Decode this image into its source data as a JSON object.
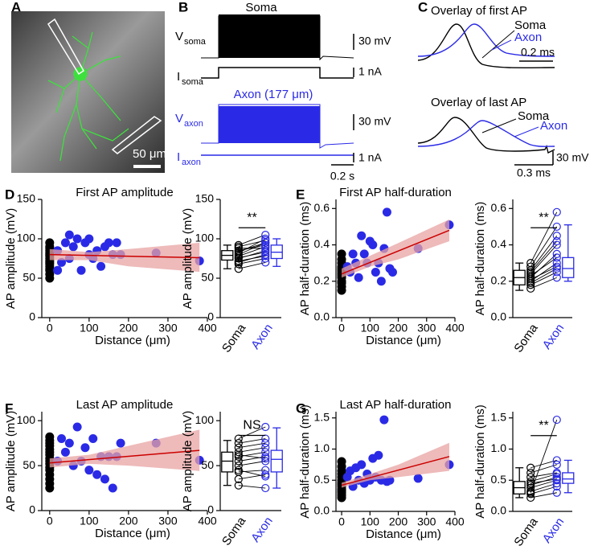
{
  "panel_labels": [
    "A",
    "B",
    "C",
    "D",
    "E",
    "F",
    "G"
  ],
  "image_a": {
    "scale_label": "50 μm"
  },
  "traces_b": {
    "soma_title": "Soma",
    "v_soma": {
      "text": "V",
      "sub": "soma"
    },
    "i_soma": {
      "text": "I",
      "sub": "soma"
    },
    "axon_title": "Axon (177 μm)",
    "v_axon": {
      "text": "V",
      "sub": "axon"
    },
    "i_axon": {
      "text": "I",
      "sub": "axon"
    },
    "scale_v1": "30 mV",
    "scale_i1": "1 nA",
    "scale_v2": "30 mV",
    "scale_i2": "1 nA",
    "scale_t": "0.2 s"
  },
  "traces_c": {
    "title_first": "Overlay of first AP",
    "soma_first": "Soma",
    "axon_first": "Axon",
    "scale_t_first": "0.2 ms",
    "title_last": "Overlay of last AP",
    "soma_last": "Soma",
    "axon_last": "Axon",
    "scale_v_last": "30 mV",
    "scale_t_last": "0.3 ms"
  },
  "chart_data": [
    {
      "type": "scatter",
      "title": "First AP amplitude",
      "xlabel": "Distance (μm)",
      "ylabel": "AP amplitude (mV)",
      "xlim": [
        -20,
        400
      ],
      "ylim": [
        0,
        150
      ],
      "xticks": [
        0,
        100,
        200,
        300,
        400
      ],
      "yticks": [
        0,
        50,
        100,
        150
      ],
      "series": [
        {
          "color": "#000000",
          "x": [
            0,
            0,
            0,
            0,
            0,
            0,
            0,
            0,
            0,
            0,
            0,
            0,
            0,
            0,
            0,
            0
          ],
          "y": [
            50,
            55,
            60,
            65,
            70,
            75,
            78,
            80,
            82,
            85,
            88,
            90,
            95,
            72,
            68,
            62
          ]
        },
        {
          "color": "#2a2ae6",
          "x": [
            20,
            30,
            40,
            50,
            60,
            70,
            80,
            90,
            100,
            110,
            120,
            130,
            140,
            150,
            160,
            170,
            180,
            270,
            380,
            20,
            50,
            100
          ],
          "y": [
            85,
            70,
            95,
            105,
            90,
            100,
            60,
            95,
            80,
            75,
            85,
            65,
            90,
            95,
            80,
            95,
            80,
            82,
            72,
            60,
            75,
            100
          ]
        }
      ],
      "fit": {
        "color": "#cc0000",
        "x": [
          0,
          380
        ],
        "y": [
          80,
          76
        ]
      },
      "band": {
        "color": "#e8a3a3",
        "x": [
          0,
          100,
          200,
          380
        ],
        "lower": [
          73,
          73,
          65,
          58
        ],
        "upper": [
          87,
          83,
          87,
          95
        ]
      }
    },
    {
      "type": "box",
      "ylabel": "AP amplitude (mV)",
      "ylim": [
        0,
        150
      ],
      "yticks": [
        0,
        50,
        100,
        150
      ],
      "categories": [
        "Soma",
        "Axon"
      ],
      "colors": [
        "#000000",
        "#2a2ae6"
      ],
      "significance": "**",
      "boxes": [
        {
          "min": 62,
          "q1": 73,
          "median": 79,
          "q3": 85,
          "max": 92
        },
        {
          "min": 65,
          "q1": 75,
          "median": 83,
          "q3": 92,
          "max": 100
        }
      ],
      "pairs": [
        [
          62,
          70,
          75,
          78,
          80,
          82,
          85,
          88,
          90,
          92,
          72,
          68,
          76,
          84
        ],
        [
          70,
          80,
          85,
          90,
          95,
          100,
          92,
          88,
          98,
          105,
          78,
          75,
          83,
          95
        ]
      ]
    },
    {
      "type": "scatter",
      "title": "First AP half-duration",
      "xlabel": "Distance (μm)",
      "ylabel": "AP half-duration (ms)",
      "xlim": [
        -20,
        400
      ],
      "ylim": [
        0,
        0.65
      ],
      "xticks": [
        0,
        100,
        200,
        300,
        400
      ],
      "yticks": [
        {
          "value": 0,
          "label": "0.0"
        },
        0.2,
        0.4,
        0.6
      ],
      "series": [
        {
          "color": "#000000",
          "x": [
            0,
            0,
            0,
            0,
            0,
            0,
            0,
            0,
            0,
            0,
            0,
            0,
            0,
            0
          ],
          "y": [
            0.15,
            0.17,
            0.19,
            0.2,
            0.22,
            0.23,
            0.24,
            0.25,
            0.26,
            0.27,
            0.28,
            0.3,
            0.32,
            0.35
          ]
        },
        {
          "color": "#2a2ae6",
          "x": [
            20,
            30,
            40,
            50,
            60,
            70,
            80,
            90,
            100,
            110,
            120,
            130,
            140,
            150,
            160,
            170,
            180,
            270,
            380
          ],
          "y": [
            0.28,
            0.25,
            0.35,
            0.3,
            0.22,
            0.45,
            0.35,
            0.3,
            0.42,
            0.4,
            0.25,
            0.3,
            0.2,
            0.38,
            0.58,
            0.27,
            0.25,
            0.38,
            0.51
          ]
        }
      ],
      "fit": {
        "color": "#cc0000",
        "x": [
          0,
          380
        ],
        "y": [
          0.24,
          0.48
        ]
      },
      "band": {
        "color": "#e8a3a3",
        "x": [
          0,
          100,
          200,
          380
        ],
        "lower": [
          0.22,
          0.28,
          0.32,
          0.42
        ],
        "upper": [
          0.27,
          0.34,
          0.41,
          0.54
        ]
      }
    },
    {
      "type": "box",
      "ylabel": "AP half-duration (ms)",
      "ylim": [
        0,
        0.65
      ],
      "yticks": [
        {
          "value": 0,
          "label": "0.0"
        },
        0.2,
        0.4,
        0.6
      ],
      "categories": [
        "Soma",
        "Axon"
      ],
      "colors": [
        "#000000",
        "#2a2ae6"
      ],
      "significance": "**",
      "boxes": [
        {
          "min": 0.15,
          "q1": 0.18,
          "median": 0.22,
          "q3": 0.26,
          "max": 0.3
        },
        {
          "min": 0.2,
          "q1": 0.22,
          "median": 0.27,
          "q3": 0.33,
          "max": 0.51
        }
      ],
      "pairs": [
        [
          0.16,
          0.18,
          0.2,
          0.22,
          0.24,
          0.26,
          0.28,
          0.3,
          0.21,
          0.19,
          0.23,
          0.25
        ],
        [
          0.22,
          0.25,
          0.3,
          0.35,
          0.4,
          0.45,
          0.5,
          0.58,
          0.28,
          0.27,
          0.33,
          0.42
        ]
      ]
    },
    {
      "type": "scatter",
      "title": "Last AP amplitude",
      "xlabel": "Distance (μm)",
      "ylabel": "AP amplitude (mV)",
      "xlim": [
        -20,
        400
      ],
      "ylim": [
        0,
        110
      ],
      "xticks": [
        0,
        100,
        200,
        300,
        400
      ],
      "yticks": [
        0,
        50,
        100
      ],
      "series": [
        {
          "color": "#000000",
          "x": [
            0,
            0,
            0,
            0,
            0,
            0,
            0,
            0,
            0,
            0,
            0,
            0,
            0,
            0,
            0,
            0
          ],
          "y": [
            25,
            30,
            35,
            40,
            45,
            48,
            52,
            55,
            58,
            62,
            65,
            68,
            72,
            75,
            78,
            82
          ]
        },
        {
          "color": "#2a2ae6",
          "x": [
            20,
            30,
            40,
            50,
            60,
            70,
            80,
            90,
            100,
            110,
            120,
            130,
            140,
            150,
            160,
            170,
            180,
            270,
            380
          ],
          "y": [
            55,
            80,
            65,
            75,
            50,
            93,
            55,
            70,
            45,
            80,
            40,
            60,
            35,
            60,
            25,
            60,
            75,
            75,
            56
          ]
        }
      ],
      "fit": {
        "color": "#cc0000",
        "x": [
          0,
          380
        ],
        "y": [
          53,
          67
        ]
      },
      "band": {
        "color": "#e8a3a3",
        "x": [
          0,
          100,
          200,
          380
        ],
        "lower": [
          48,
          52,
          50,
          44
        ],
        "upper": [
          58,
          62,
          72,
          90
        ]
      }
    },
    {
      "type": "box",
      "ylabel": "AP amplitude (mV)",
      "ylim": [
        0,
        110
      ],
      "yticks": [
        0,
        50,
        100
      ],
      "categories": [
        "Soma",
        "Axon"
      ],
      "colors": [
        "#000000",
        "#2a2ae6"
      ],
      "significance": "NS",
      "boxes": [
        {
          "min": 28,
          "q1": 43,
          "median": 55,
          "q3": 65,
          "max": 78
        },
        {
          "min": 25,
          "q1": 43,
          "median": 57,
          "q3": 67,
          "max": 92
        }
      ],
      "pairs": [
        [
          28,
          35,
          43,
          50,
          55,
          60,
          65,
          70,
          75,
          80,
          45,
          62
        ],
        [
          25,
          40,
          45,
          55,
          60,
          65,
          70,
          75,
          80,
          93,
          38,
          58
        ]
      ]
    },
    {
      "type": "scatter",
      "title": "Last AP half-duration",
      "xlabel": "Distance (μm)",
      "ylabel": "AP half-duration (ms)",
      "xlim": [
        -20,
        400
      ],
      "ylim": [
        0,
        1.6
      ],
      "xticks": [
        0,
        100,
        200,
        300,
        400
      ],
      "yticks": [
        {
          "value": 0,
          "label": "0.0"
        },
        0.5,
        {
          "value": 1,
          "label": "1.0"
        },
        1.5
      ],
      "series": [
        {
          "color": "#000000",
          "x": [
            0,
            0,
            0,
            0,
            0,
            0,
            0,
            0,
            0,
            0,
            0,
            0,
            0,
            0
          ],
          "y": [
            0.22,
            0.26,
            0.3,
            0.33,
            0.36,
            0.4,
            0.43,
            0.46,
            0.5,
            0.55,
            0.6,
            0.65,
            0.72,
            0.8
          ]
        },
        {
          "color": "#2a2ae6",
          "x": [
            20,
            30,
            40,
            50,
            60,
            70,
            80,
            90,
            100,
            110,
            120,
            130,
            140,
            150,
            160,
            170,
            270,
            380
          ],
          "y": [
            0.55,
            0.65,
            0.4,
            0.7,
            0.5,
            0.75,
            0.45,
            0.6,
            0.5,
            0.85,
            0.55,
            0.9,
            0.5,
            1.47,
            0.48,
            0.5,
            0.53,
            0.75
          ]
        }
      ],
      "fit": {
        "color": "#cc0000",
        "x": [
          0,
          380
        ],
        "y": [
          0.42,
          0.88
        ]
      },
      "band": {
        "color": "#e8a3a3",
        "x": [
          0,
          100,
          200,
          380
        ],
        "lower": [
          0.38,
          0.5,
          0.55,
          0.65
        ],
        "upper": [
          0.46,
          0.6,
          0.75,
          1.1
        ]
      }
    },
    {
      "type": "box",
      "ylabel": "AP half-duration (ms)",
      "ylim": [
        0,
        1.6
      ],
      "yticks": [
        {
          "value": 0,
          "label": "0.0"
        },
        0.5,
        {
          "value": 1,
          "label": "1.0"
        },
        1.5
      ],
      "categories": [
        "Soma",
        "Axon"
      ],
      "colors": [
        "#000000",
        "#2a2ae6"
      ],
      "significance": "**",
      "boxes": [
        {
          "min": 0.22,
          "q1": 0.28,
          "median": 0.38,
          "q3": 0.48,
          "max": 0.7
        },
        {
          "min": 0.3,
          "q1": 0.45,
          "median": 0.52,
          "q3": 0.62,
          "max": 0.82
        }
      ],
      "pairs": [
        [
          0.22,
          0.28,
          0.32,
          0.38,
          0.42,
          0.48,
          0.55,
          0.62,
          0.7,
          0.3,
          0.45
        ],
        [
          0.3,
          0.4,
          0.45,
          0.5,
          0.55,
          0.6,
          0.62,
          0.75,
          0.82,
          1.47,
          0.52
        ]
      ]
    }
  ]
}
